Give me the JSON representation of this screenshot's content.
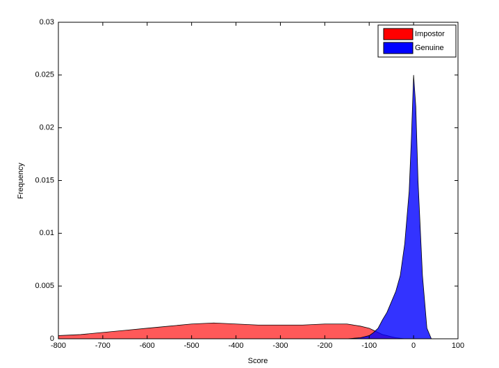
{
  "chart_data": {
    "type": "area",
    "x_label": "Score",
    "y_label": "Frequency",
    "x": [
      -800,
      -750,
      -700,
      -650,
      -600,
      -550,
      -500,
      -450,
      -400,
      -350,
      -300,
      -250,
      -200,
      -150,
      -120,
      -100,
      -90,
      -80,
      -70,
      -60,
      -50,
      -40,
      -30,
      -20,
      -10,
      -5,
      0,
      5,
      10,
      20,
      30,
      40
    ],
    "series": [
      {
        "name": "Impostor",
        "color": "#ff0000",
        "values": [
          0.0003,
          0.0004,
          0.0006,
          0.0008,
          0.001,
          0.0012,
          0.0014,
          0.0015,
          0.0014,
          0.0013,
          0.0013,
          0.0013,
          0.0014,
          0.0014,
          0.0012,
          0.001,
          0.0008,
          0.0006,
          0.0004,
          0.0003,
          0.0002,
          0.0001,
          5e-05,
          0,
          0,
          0,
          0,
          0,
          0,
          0,
          0,
          0
        ]
      },
      {
        "name": "Genuine",
        "color": "#0000ff",
        "values": [
          0,
          0,
          0,
          0,
          0,
          0,
          0,
          0,
          0,
          0,
          0,
          0,
          0,
          0,
          0.0001,
          0.0003,
          0.0006,
          0.001,
          0.0018,
          0.0025,
          0.0035,
          0.0045,
          0.006,
          0.009,
          0.014,
          0.019,
          0.025,
          0.022,
          0.015,
          0.006,
          0.001,
          0
        ]
      }
    ],
    "xlim": [
      -800,
      100
    ],
    "xticks": [
      -800,
      -700,
      -600,
      -500,
      -400,
      -300,
      -200,
      -100,
      0,
      100
    ],
    "ylim": [
      0,
      0.03
    ],
    "yticks": [
      0,
      0.005,
      0.01,
      0.015,
      0.02,
      0.025,
      0.03
    ],
    "legend": "northeast",
    "grid": false
  }
}
